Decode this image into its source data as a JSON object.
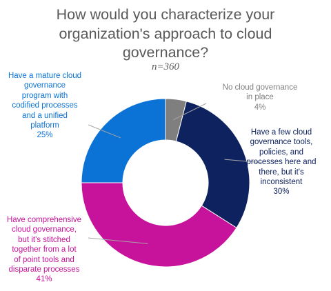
{
  "chart_data": {
    "type": "pie",
    "donut": true,
    "title_lines": [
      "How would you characterize your",
      "organization's approach to cloud",
      "governance?"
    ],
    "subtitle": "n=360",
    "legend": "none",
    "slices": [
      {
        "label_lines": [
          "No cloud governance",
          "in place"
        ],
        "value": 4,
        "value_label": "4%",
        "color": "#7f7f7f"
      },
      {
        "label_lines": [
          "Have a few cloud",
          "governance tools,",
          "policies, and",
          "processes here and",
          "there, but it's",
          "inconsistent"
        ],
        "value": 30,
        "value_label": "30%",
        "color": "#0e2260"
      },
      {
        "label_lines": [
          "Have comprehensive",
          "cloud governance,",
          "but it's stitched",
          "together from a lot",
          "of point tools and",
          "disparate processes"
        ],
        "value": 41,
        "value_label": "41%",
        "color": "#c7139b"
      },
      {
        "label_lines": [
          "Have a mature cloud",
          "governance",
          "program with",
          "codified processes",
          "and a unified",
          "platform"
        ],
        "value": 25,
        "value_label": "25%",
        "color": "#0b72d6"
      }
    ],
    "label_colors": [
      "#7f7f7f",
      "#0e2260",
      "#c7139b",
      "#0b72d6"
    ]
  }
}
